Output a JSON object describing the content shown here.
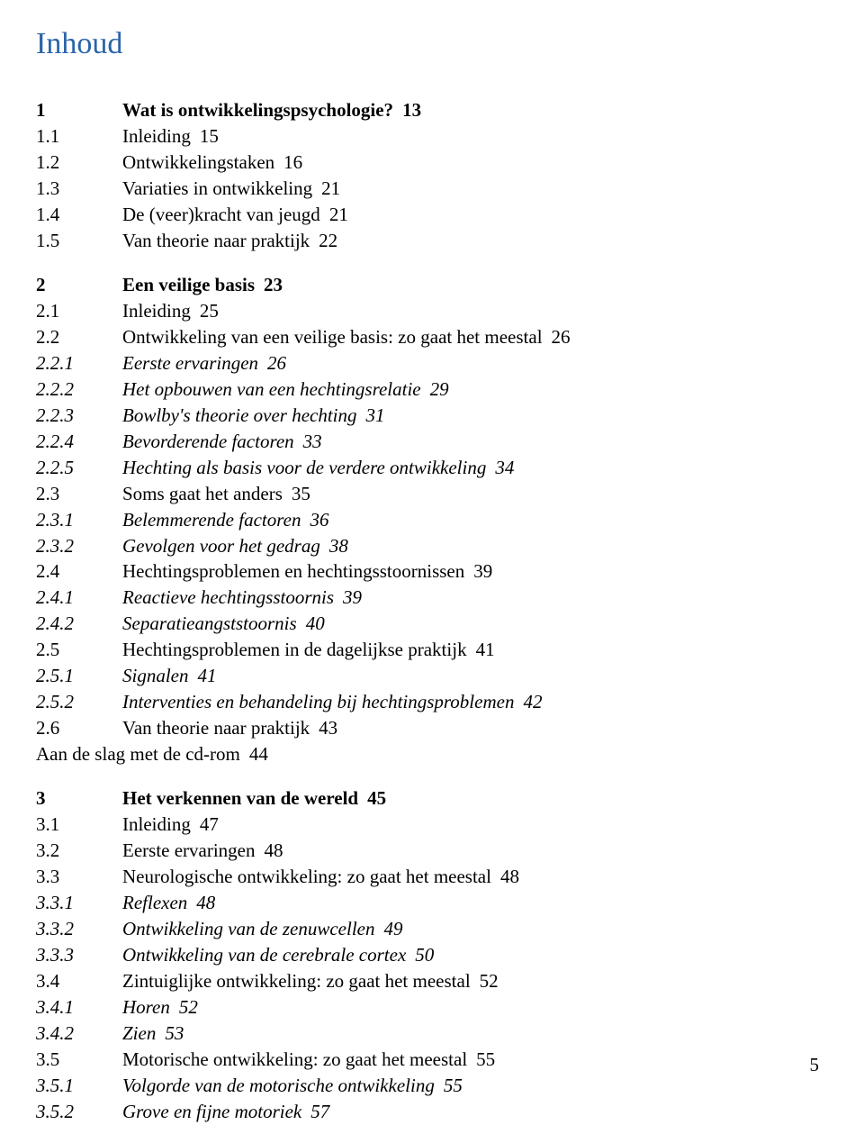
{
  "pageTitle": "Inhoud",
  "pageNumber": "5",
  "colors": {
    "title": "#2a64a8",
    "text": "#000000",
    "background": "#ffffff"
  },
  "typography": {
    "titleSize": 34,
    "bodySize": 21,
    "lineHeight": 1.38,
    "numberColumnWidth": 96
  },
  "entries": [
    {
      "kind": "chapter",
      "num": "1",
      "title": "Wat is ontwikkelingspsychologie?",
      "page": "13"
    },
    {
      "kind": "section",
      "num": "1.1",
      "title": "Inleiding",
      "page": "15"
    },
    {
      "kind": "section",
      "num": "1.2",
      "title": "Ontwikkelingstaken",
      "page": "16"
    },
    {
      "kind": "section",
      "num": "1.3",
      "title": "Variaties in ontwikkeling",
      "page": "21"
    },
    {
      "kind": "section",
      "num": "1.4",
      "title": "De (veer)kracht van jeugd",
      "page": "21"
    },
    {
      "kind": "section",
      "num": "1.5",
      "title": "Van theorie naar praktijk",
      "page": "22"
    },
    {
      "kind": "gap"
    },
    {
      "kind": "chapter",
      "num": "2",
      "title": "Een veilige basis",
      "page": "23"
    },
    {
      "kind": "section",
      "num": "2.1",
      "title": "Inleiding",
      "page": "25"
    },
    {
      "kind": "section",
      "num": "2.2",
      "title": "Ontwikkeling van een veilige basis: zo gaat het meestal",
      "page": "26"
    },
    {
      "kind": "sub",
      "num": "2.2.1",
      "title": "Eerste ervaringen",
      "page": "26"
    },
    {
      "kind": "sub",
      "num": "2.2.2",
      "title": "Het opbouwen van een hechtingsrelatie",
      "page": "29"
    },
    {
      "kind": "sub",
      "num": "2.2.3",
      "title": "Bowlby's theorie over hechting",
      "page": "31"
    },
    {
      "kind": "sub",
      "num": "2.2.4",
      "title": "Bevorderende factoren",
      "page": "33"
    },
    {
      "kind": "sub",
      "num": "2.2.5",
      "title": "Hechting als basis voor de verdere ontwikkeling",
      "page": "34"
    },
    {
      "kind": "section",
      "num": "2.3",
      "title": "Soms gaat het anders",
      "page": "35"
    },
    {
      "kind": "sub",
      "num": "2.3.1",
      "title": "Belemmerende factoren",
      "page": "36"
    },
    {
      "kind": "sub",
      "num": "2.3.2",
      "title": "Gevolgen voor het gedrag",
      "page": "38"
    },
    {
      "kind": "section",
      "num": "2.4",
      "title": "Hechtingsproblemen en hechtingsstoornissen",
      "page": "39"
    },
    {
      "kind": "sub",
      "num": "2.4.1",
      "title": "Reactieve hechtingsstoornis",
      "page": "39"
    },
    {
      "kind": "sub",
      "num": "2.4.2",
      "title": "Separatieangststoornis",
      "page": "40"
    },
    {
      "kind": "section",
      "num": "2.5",
      "title": "Hechtingsproblemen in de dagelijkse praktijk",
      "page": "41"
    },
    {
      "kind": "sub",
      "num": "2.5.1",
      "title": "Signalen",
      "page": "41"
    },
    {
      "kind": "sub",
      "num": "2.5.2",
      "title": "Interventies en behandeling bij hechtingsproblemen",
      "page": "42"
    },
    {
      "kind": "section",
      "num": "2.6",
      "title": "Van theorie naar praktijk",
      "page": "43"
    },
    {
      "kind": "plain",
      "num": "",
      "title": "Aan de slag met de cd-rom",
      "page": "44"
    },
    {
      "kind": "gap"
    },
    {
      "kind": "chapter",
      "num": "3",
      "title": "Het verkennen van de wereld",
      "page": "45"
    },
    {
      "kind": "section",
      "num": "3.1",
      "title": "Inleiding",
      "page": "47"
    },
    {
      "kind": "section",
      "num": "3.2",
      "title": "Eerste ervaringen",
      "page": "48"
    },
    {
      "kind": "section",
      "num": "3.3",
      "title": "Neurologische ontwikkeling: zo gaat het meestal",
      "page": "48"
    },
    {
      "kind": "sub",
      "num": "3.3.1",
      "title": "Reflexen",
      "page": "48"
    },
    {
      "kind": "sub",
      "num": "3.3.2",
      "title": "Ontwikkeling van de zenuwcellen",
      "page": "49"
    },
    {
      "kind": "sub",
      "num": "3.3.3",
      "title": "Ontwikkeling van de cerebrale cortex",
      "page": "50"
    },
    {
      "kind": "section",
      "num": "3.4",
      "title": "Zintuiglijke ontwikkeling: zo gaat het meestal",
      "page": "52"
    },
    {
      "kind": "sub",
      "num": "3.4.1",
      "title": "Horen",
      "page": "52"
    },
    {
      "kind": "sub",
      "num": "3.4.2",
      "title": "Zien",
      "page": "53"
    },
    {
      "kind": "section",
      "num": "3.5",
      "title": "Motorische ontwikkeling: zo gaat het meestal",
      "page": "55"
    },
    {
      "kind": "sub",
      "num": "3.5.1",
      "title": "Volgorde van de motorische ontwikkeling",
      "page": "55"
    },
    {
      "kind": "sub",
      "num": "3.5.2",
      "title": "Grove en fijne motoriek",
      "page": "57"
    }
  ]
}
